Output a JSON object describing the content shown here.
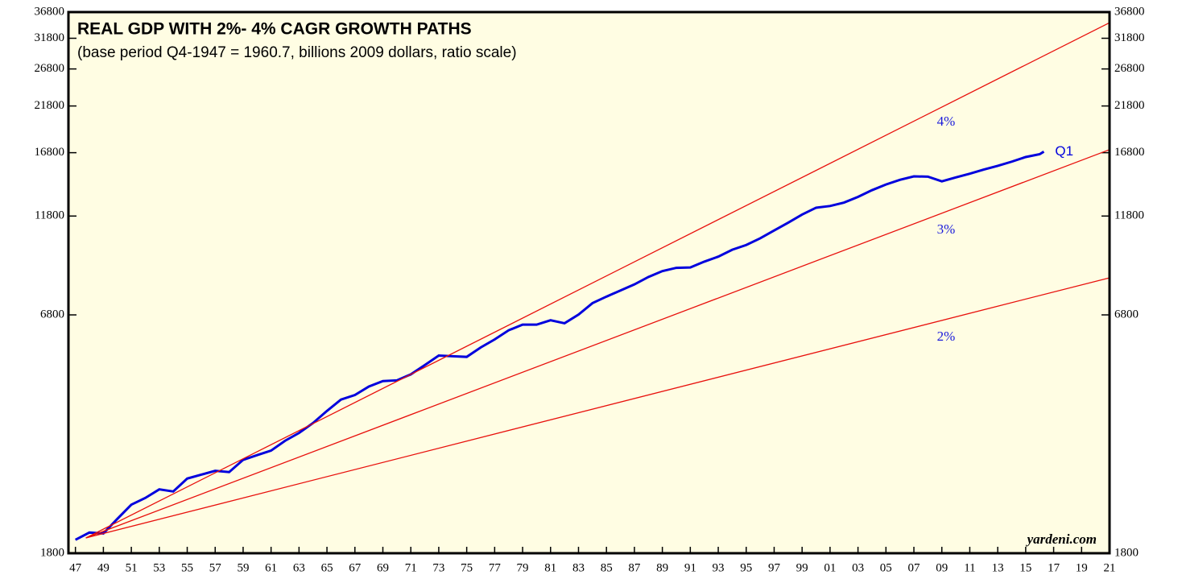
{
  "chart_data": {
    "type": "line",
    "title": "REAL GDP WITH 2%- 4% CAGR GROWTH PATHS",
    "subtitle": "(base period Q4-1947 = 1960.7, billions 2009 dollars, ratio scale)",
    "source": "yardeni.com",
    "log_scale": true,
    "xlim": [
      1946.5,
      2021
    ],
    "ylim": [
      1800,
      36800
    ],
    "yticks": [
      1800,
      6800,
      11800,
      16800,
      21800,
      26800,
      31800,
      36800
    ],
    "xticks": [
      {
        "value": 1947,
        "label": "47"
      },
      {
        "value": 1949,
        "label": "49"
      },
      {
        "value": 1951,
        "label": "51"
      },
      {
        "value": 1953,
        "label": "53"
      },
      {
        "value": 1955,
        "label": "55"
      },
      {
        "value": 1957,
        "label": "57"
      },
      {
        "value": 1959,
        "label": "59"
      },
      {
        "value": 1961,
        "label": "61"
      },
      {
        "value": 1963,
        "label": "63"
      },
      {
        "value": 1965,
        "label": "65"
      },
      {
        "value": 1967,
        "label": "67"
      },
      {
        "value": 1969,
        "label": "69"
      },
      {
        "value": 1971,
        "label": "71"
      },
      {
        "value": 1973,
        "label": "73"
      },
      {
        "value": 1975,
        "label": "75"
      },
      {
        "value": 1977,
        "label": "77"
      },
      {
        "value": 1979,
        "label": "79"
      },
      {
        "value": 1981,
        "label": "81"
      },
      {
        "value": 1983,
        "label": "83"
      },
      {
        "value": 1985,
        "label": "85"
      },
      {
        "value": 1987,
        "label": "87"
      },
      {
        "value": 1989,
        "label": "89"
      },
      {
        "value": 1991,
        "label": "91"
      },
      {
        "value": 1993,
        "label": "93"
      },
      {
        "value": 1995,
        "label": "95"
      },
      {
        "value": 1997,
        "label": "97"
      },
      {
        "value": 1999,
        "label": "99"
      },
      {
        "value": 2001,
        "label": "01"
      },
      {
        "value": 2003,
        "label": "03"
      },
      {
        "value": 2005,
        "label": "05"
      },
      {
        "value": 2007,
        "label": "07"
      },
      {
        "value": 2009,
        "label": "09"
      },
      {
        "value": 2011,
        "label": "11"
      },
      {
        "value": 2013,
        "label": "13"
      },
      {
        "value": 2015,
        "label": "15"
      },
      {
        "value": 2017,
        "label": "17"
      },
      {
        "value": 2019,
        "label": "19"
      },
      {
        "value": 2021,
        "label": "21"
      }
    ],
    "series": [
      {
        "end_label": "Q1",
        "color": "#0000dd",
        "x": [
          1947,
          1948,
          1949,
          1950,
          1951,
          1952,
          1953,
          1954,
          1955,
          1956,
          1957,
          1958,
          1959,
          1960,
          1961,
          1962,
          1963,
          1964,
          1965,
          1966,
          1967,
          1968,
          1969,
          1970,
          1971,
          1972,
          1973,
          1974,
          1975,
          1976,
          1977,
          1978,
          1979,
          1980,
          1981,
          1982,
          1983,
          1984,
          1985,
          1986,
          1987,
          1988,
          1989,
          1990,
          1991,
          1992,
          1993,
          1994,
          1995,
          1996,
          1997,
          1998,
          1999,
          2000,
          2001,
          2002,
          2003,
          2004,
          2005,
          2006,
          2007,
          2008,
          2009,
          2010,
          2011,
          2012,
          2013,
          2014,
          2015,
          2016,
          2016.3
        ],
        "values": [
          1940,
          2020,
          2010,
          2180,
          2360,
          2450,
          2570,
          2540,
          2730,
          2790,
          2850,
          2830,
          3030,
          3110,
          3190,
          3370,
          3520,
          3720,
          3980,
          4240,
          4350,
          4560,
          4700,
          4720,
          4880,
          5140,
          5420,
          5400,
          5380,
          5670,
          5930,
          6240,
          6440,
          6440,
          6600,
          6490,
          6810,
          7260,
          7530,
          7790,
          8060,
          8400,
          8680,
          8840,
          8860,
          9150,
          9410,
          9780,
          10040,
          10420,
          10890,
          11370,
          11900,
          12360,
          12480,
          12720,
          13130,
          13630,
          14070,
          14440,
          14720,
          14700,
          14320,
          14640,
          14940,
          15290,
          15610,
          15980,
          16400,
          16660,
          16900
        ]
      },
      {
        "name": "4%",
        "color": "#e8100c",
        "x": [
          1947.75,
          2021
        ],
        "values": [
          1960.7,
          34683
        ]
      },
      {
        "name": "3%",
        "color": "#e8100c",
        "x": [
          1947.75,
          2021
        ],
        "values": [
          1960.7,
          17090
        ]
      },
      {
        "name": "2%",
        "color": "#e8100c",
        "x": [
          1947.75,
          2021
        ],
        "values": [
          1960.7,
          8363
        ]
      }
    ]
  }
}
